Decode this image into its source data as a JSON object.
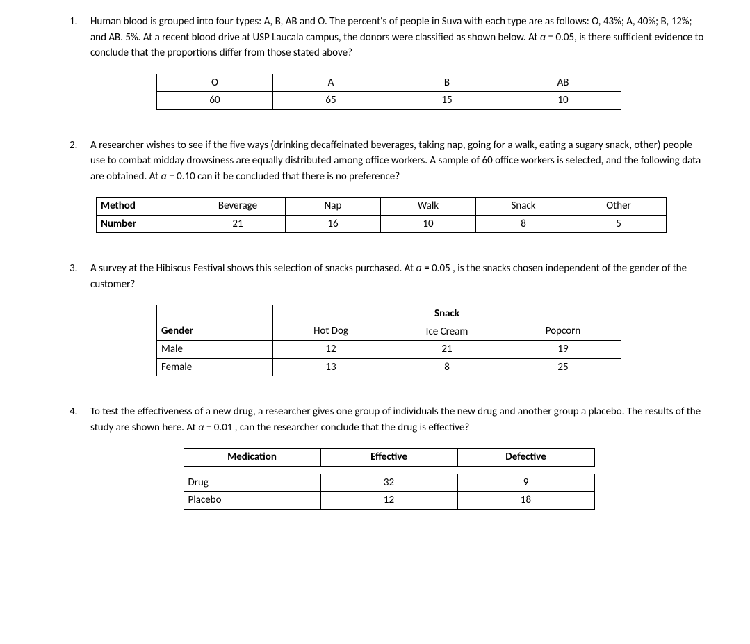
{
  "questions": {
    "q1": {
      "number": "1.",
      "text_parts": {
        "p1": "Human blood is grouped into four types: A, B, AB and O. The percent's of people in Suva with each type are as follows: O, 43%; A, 40%; B, 12%; and AB. 5%. At a recent blood drive at USP Laucala campus, the donors were classified as shown below. At ",
        "alpha": "α",
        "p2": " = 0.05, is there sufficient evidence to conclude that the proportions differ from those stated above?"
      },
      "table": {
        "headers": [
          "O",
          "A",
          "B",
          "AB"
        ],
        "values": [
          "60",
          "65",
          "15",
          "10"
        ]
      }
    },
    "q2": {
      "number": "2.",
      "text_parts": {
        "p1": "A researcher wishes to see if the five ways (drinking decaffeinated beverages, taking nap, going for a walk, eating a sugary snack, other) people use to combat midday drowsiness are equally distributed among office workers. A sample of 60 office workers is selected, and the following data are obtained. At ",
        "alpha": "α",
        "p2": " = 0.10 can it be concluded that there is no preference?"
      },
      "table": {
        "row_labels": [
          "Method",
          "Number"
        ],
        "headers": [
          "Beverage",
          "Nap",
          "Walk",
          "Snack",
          "Other"
        ],
        "values": [
          "21",
          "16",
          "10",
          "8",
          "5"
        ]
      }
    },
    "q3": {
      "number": "3.",
      "text_parts": {
        "p1": "A survey at the Hibiscus Festival shows this selection of snacks purchased. At ",
        "alpha": "α",
        "p2": " = 0.05 , is the snacks chosen independent of the gender of the customer?"
      },
      "table": {
        "super_header": "Snack",
        "col_header_label": "Gender",
        "headers": [
          "Hot Dog",
          "Ice Cream",
          "Popcorn"
        ],
        "row_labels": [
          "Male",
          "Female"
        ],
        "rows": [
          [
            "12",
            "21",
            "19"
          ],
          [
            "13",
            "8",
            "25"
          ]
        ]
      }
    },
    "q4": {
      "number": "4.",
      "text_parts": {
        "p1": "To test the effectiveness of a new drug, a researcher gives one group of individuals the new drug and another group a placebo. The results of the study are shown here. At ",
        "alpha": "α",
        "p2": " = 0.01 , can the researcher conclude that the drug is effective?"
      },
      "table": {
        "headers": [
          "Medication",
          "Effective",
          "Defective"
        ],
        "row_labels": [
          "Drug",
          "Placebo"
        ],
        "rows": [
          [
            "32",
            "9"
          ],
          [
            "12",
            "18"
          ]
        ]
      }
    }
  }
}
